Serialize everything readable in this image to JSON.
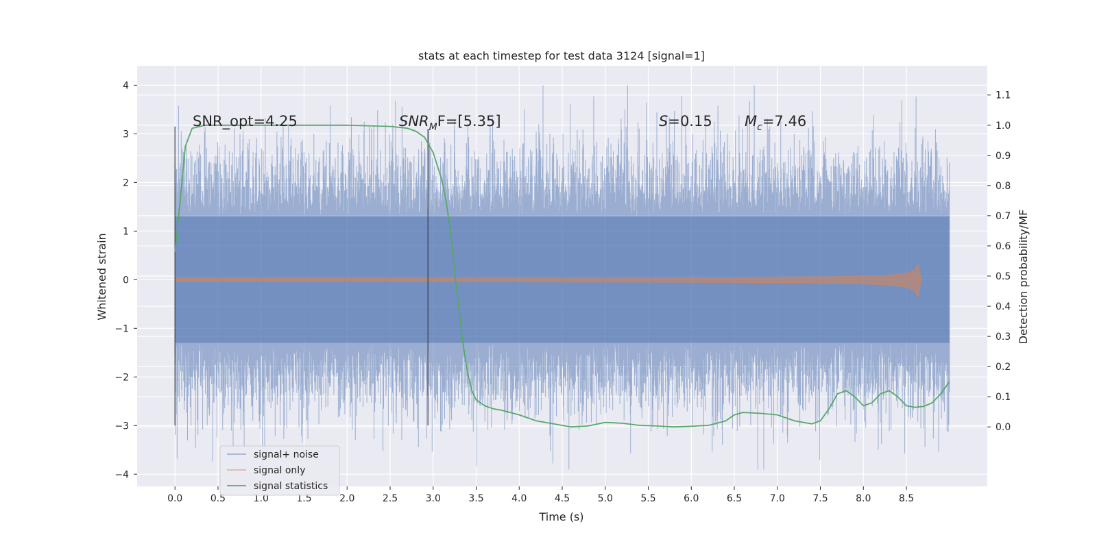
{
  "chart_data": {
    "type": "line",
    "title": "stats at each timestep for test data 3124 [signal=1]",
    "xlabel": "Time (s)",
    "ylabel": "Whitened strain",
    "y2label": "Detection probability/MF",
    "xlim": [
      -0.44,
      9.44
    ],
    "ylim": [
      -4.25,
      4.4
    ],
    "y2lim": [
      -0.197,
      1.197
    ],
    "xticks": [
      "0.0",
      "0.5",
      "1.0",
      "1.5",
      "2.0",
      "2.5",
      "3.0",
      "3.5",
      "4.0",
      "4.5",
      "5.0",
      "5.5",
      "6.0",
      "6.5",
      "7.0",
      "7.5",
      "8.0",
      "8.5"
    ],
    "yticks": [
      "4",
      "3",
      "2",
      "1",
      "0",
      "−1",
      "−2",
      "−3",
      "−4"
    ],
    "y2ticks": [
      "1.1",
      "1.0",
      "0.9",
      "0.8",
      "0.7",
      "0.6",
      "0.5",
      "0.4",
      "0.3",
      "0.2",
      "0.1",
      "0.0"
    ],
    "grid": true,
    "legend_position": "lower-left",
    "annotations": {
      "snr_opt": "SNR_opt=4.25",
      "snr_mf_prefix": "SNR",
      "snr_mf_sub": "M",
      "snr_mf_suffix": "F=[5.35]",
      "s_symbol": "S",
      "s_value": "=0.15",
      "mc_symbol": "M",
      "mc_sub": "c",
      "mc_value": "=7.46"
    },
    "vlines": [
      {
        "x": 0.0,
        "ymin": -3.0,
        "ymax": 3.15
      },
      {
        "x": 2.94,
        "ymin": -3.0,
        "ymax": 3.1
      }
    ],
    "series": [
      {
        "name": "signal+ noise",
        "color": "#4c72b0",
        "t_end": 9.0,
        "core_amplitude": 1.3,
        "typical_peak": 2.3,
        "max_excursion": 4.0,
        "min_excursion": -3.9
      },
      {
        "name": "signal only",
        "color": "#dd8452",
        "t_start": 0.0,
        "t_end": 8.67,
        "peak_amplitude": 0.6
      },
      {
        "name": "signal statistics",
        "color": "#55a868",
        "axis": "right",
        "x": [
          0.0,
          0.06,
          0.12,
          0.2,
          0.35,
          0.6,
          1.0,
          1.5,
          2.0,
          2.5,
          2.7,
          2.8,
          2.9,
          3.0,
          3.1,
          3.15,
          3.2,
          3.25,
          3.3,
          3.35,
          3.4,
          3.45,
          3.5,
          3.6,
          3.7,
          3.8,
          4.0,
          4.2,
          4.4,
          4.6,
          4.8,
          5.0,
          5.2,
          5.4,
          5.6,
          5.8,
          6.0,
          6.2,
          6.4,
          6.5,
          6.6,
          6.8,
          7.0,
          7.2,
          7.4,
          7.5,
          7.6,
          7.7,
          7.8,
          7.9,
          8.0,
          8.1,
          8.2,
          8.3,
          8.4,
          8.5,
          8.6,
          8.7,
          8.8,
          8.9,
          9.0
        ],
        "y": [
          0.58,
          0.75,
          0.93,
          0.99,
          1.0,
          1.0,
          1.0,
          1.0,
          1.0,
          0.996,
          0.99,
          0.98,
          0.96,
          0.91,
          0.82,
          0.75,
          0.65,
          0.52,
          0.39,
          0.27,
          0.18,
          0.12,
          0.09,
          0.07,
          0.06,
          0.055,
          0.04,
          0.02,
          0.01,
          0.0,
          0.003,
          0.015,
          0.012,
          0.005,
          0.003,
          0.0,
          0.002,
          0.005,
          0.02,
          0.04,
          0.048,
          0.045,
          0.04,
          0.02,
          0.01,
          0.02,
          0.06,
          0.11,
          0.12,
          0.1,
          0.07,
          0.08,
          0.11,
          0.12,
          0.1,
          0.07,
          0.065,
          0.068,
          0.08,
          0.11,
          0.15
        ]
      }
    ]
  }
}
